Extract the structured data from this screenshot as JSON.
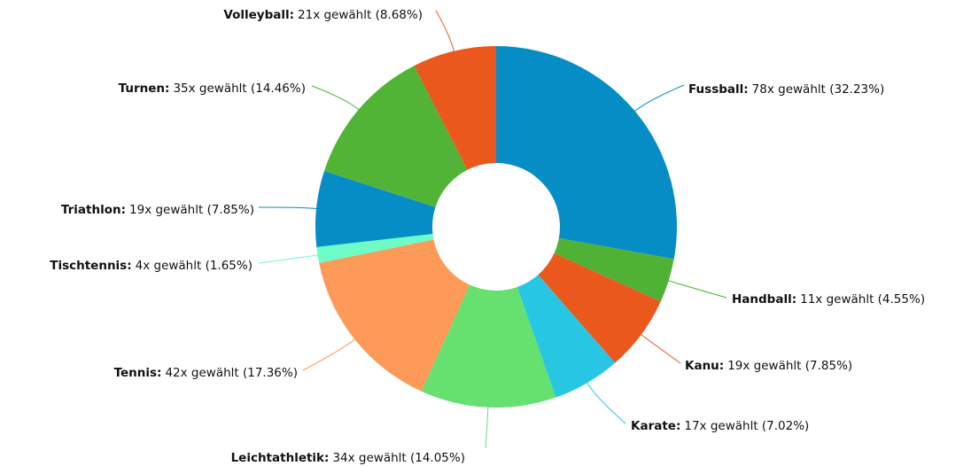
{
  "chart_data": {
    "type": "donut",
    "categories": [
      "Fussball",
      "Handball",
      "Kanu",
      "Karate",
      "Leichtathletik",
      "Tennis",
      "Tischtennis",
      "Triathlon",
      "Turnen",
      "Volleyball"
    ],
    "values": [
      78,
      11,
      19,
      17,
      34,
      42,
      4,
      19,
      35,
      21
    ],
    "value_labels": [
      "78x gewählt (32.23%)",
      "11x gewählt (4.55%)",
      "19x gewählt (7.85%)",
      "17x gewählt (7.02%)",
      "34x gewählt (14.05%)",
      "42x gewählt (17.36%)",
      "4x gewählt (1.65%)",
      "19x gewählt (7.85%)",
      "35x gewählt (14.46%)",
      "21x gewählt (8.68%)"
    ],
    "colors": [
      "#078dc6",
      "#4fb234",
      "#ea581d",
      "#27c7e4",
      "#66e06f",
      "#fd9a58",
      "#6dfcc6",
      "#078dc6",
      "#52b436",
      "#ea581d"
    ]
  }
}
